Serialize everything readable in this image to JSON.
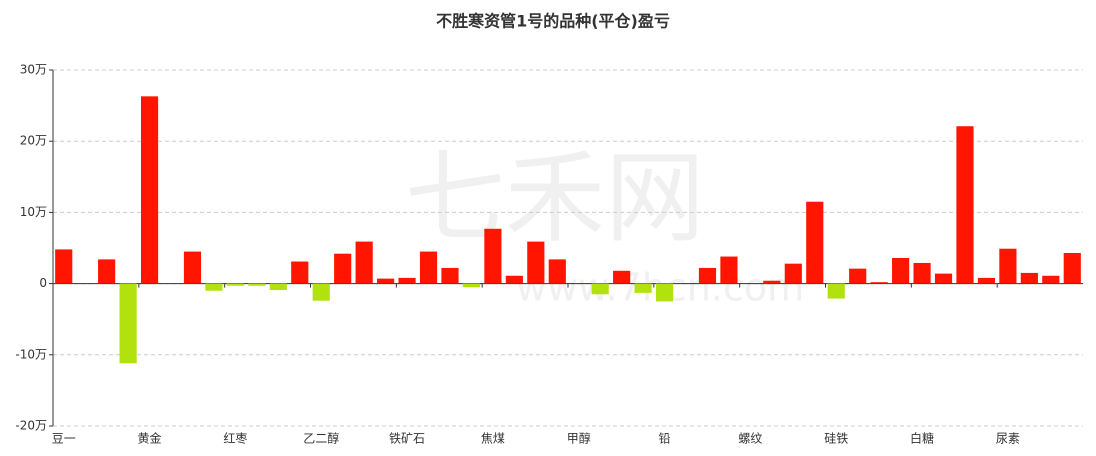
{
  "chart_data": {
    "type": "bar",
    "title": "不胜寒资管1号的品种(平仓)盈亏",
    "watermark": {
      "brand": "七禾网",
      "url": "www.7hcn.com"
    },
    "categories": [
      "豆一",
      null,
      null,
      null,
      "黄金",
      null,
      null,
      null,
      "红枣",
      null,
      null,
      null,
      "乙二醇",
      null,
      null,
      null,
      "铁矿石",
      null,
      null,
      null,
      "焦煤",
      null,
      null,
      null,
      "甲醇",
      null,
      null,
      null,
      "铅",
      null,
      null,
      null,
      "螺纹",
      null,
      null,
      null,
      "硅铁",
      null,
      null,
      null,
      "白糖",
      null,
      null,
      null,
      "尿素",
      null,
      null,
      null
    ],
    "values": [
      4.8,
      0,
      3.4,
      -11.2,
      26.3,
      0,
      4.5,
      -1.0,
      -0.3,
      -0.3,
      -0.9,
      3.1,
      -2.4,
      4.2,
      5.9,
      0.7,
      0.8,
      4.5,
      2.2,
      -0.5,
      7.7,
      1.1,
      5.9,
      3.4,
      0,
      -1.5,
      1.8,
      -1.3,
      -2.5,
      0,
      2.2,
      3.8,
      0,
      0.4,
      2.8,
      11.5,
      -2.1,
      2.1,
      0.2,
      3.6,
      2.9,
      1.4,
      22.1,
      0.8,
      4.9,
      1.5,
      1.1,
      4.3
    ],
    "color": "#ff1500",
    "negative_color": "#b2e20e",
    "ylim": [
      -20,
      30
    ],
    "yticks": [
      {
        "value": -20,
        "label": "-20万"
      },
      {
        "value": -10,
        "label": "-10万"
      },
      {
        "value": 0,
        "label": "0"
      },
      {
        "value": 10,
        "label": "10万"
      },
      {
        "value": 20,
        "label": "20万"
      },
      {
        "value": 30,
        "label": "30万"
      }
    ],
    "grid": true
  }
}
